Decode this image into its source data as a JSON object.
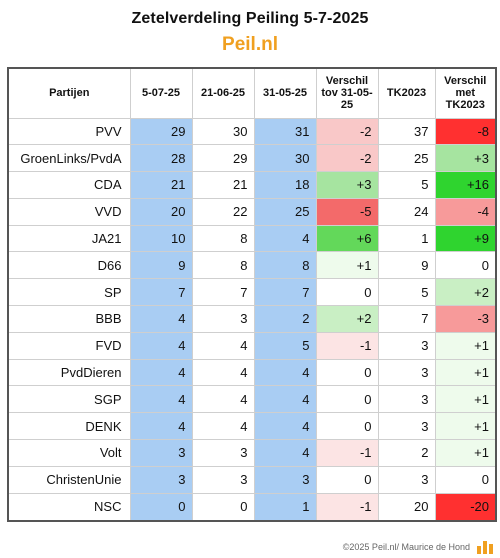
{
  "title": "Zetelverdeling Peiling 5-7-2025",
  "brand": "Peil.nl",
  "footer": "©2025 Peil.nl/ Maurice de Hond",
  "colors": {
    "date_col": "#a9cdf3",
    "neutral": "#ffffff",
    "neg_strong": "#f36a6a",
    "neg_light": "#f9c8c8",
    "pos_strong": "#33cc33",
    "pos_light": "#a6e4a0"
  },
  "chart_data": {
    "type": "table",
    "columns": [
      "Partijen",
      "5-07-25",
      "21-06-25",
      "31-05-25",
      "Verschil tov 31-05-25",
      "TK2023",
      "Verschil met TK2023"
    ],
    "rows": [
      {
        "party": "PVV",
        "v1": 29,
        "v2": 30,
        "v3": 31,
        "diff1": "-2",
        "tk": 37,
        "diff2": "-8"
      },
      {
        "party": "GroenLinks/PvdA",
        "v1": 28,
        "v2": 29,
        "v3": 30,
        "diff1": "-2",
        "tk": 25,
        "diff2": "+3"
      },
      {
        "party": "CDA",
        "v1": 21,
        "v2": 21,
        "v3": 18,
        "diff1": "+3",
        "tk": 5,
        "diff2": "+16"
      },
      {
        "party": "VVD",
        "v1": 20,
        "v2": 22,
        "v3": 25,
        "diff1": "-5",
        "tk": 24,
        "diff2": "-4"
      },
      {
        "party": "JA21",
        "v1": 10,
        "v2": 8,
        "v3": 4,
        "diff1": "+6",
        "tk": 1,
        "diff2": "+9"
      },
      {
        "party": "D66",
        "v1": 9,
        "v2": 8,
        "v3": 8,
        "diff1": "+1",
        "tk": 9,
        "diff2": "0"
      },
      {
        "party": "SP",
        "v1": 7,
        "v2": 7,
        "v3": 7,
        "diff1": "0",
        "tk": 5,
        "diff2": "+2"
      },
      {
        "party": "BBB",
        "v1": 4,
        "v2": 3,
        "v3": 2,
        "diff1": "+2",
        "tk": 7,
        "diff2": "-3"
      },
      {
        "party": "FVD",
        "v1": 4,
        "v2": 4,
        "v3": 5,
        "diff1": "-1",
        "tk": 3,
        "diff2": "+1"
      },
      {
        "party": "PvdDieren",
        "v1": 4,
        "v2": 4,
        "v3": 4,
        "diff1": "0",
        "tk": 3,
        "diff2": "+1"
      },
      {
        "party": "SGP",
        "v1": 4,
        "v2": 4,
        "v3": 4,
        "diff1": "0",
        "tk": 3,
        "diff2": "+1"
      },
      {
        "party": "DENK",
        "v1": 4,
        "v2": 4,
        "v3": 4,
        "diff1": "0",
        "tk": 3,
        "diff2": "+1"
      },
      {
        "party": "Volt",
        "v1": 3,
        "v2": 3,
        "v3": 4,
        "diff1": "-1",
        "tk": 2,
        "diff2": "+1"
      },
      {
        "party": "ChristenUnie",
        "v1": 3,
        "v2": 3,
        "v3": 3,
        "diff1": "0",
        "tk": 3,
        "diff2": "0"
      },
      {
        "party": "NSC",
        "v1": 0,
        "v2": 0,
        "v3": 1,
        "diff1": "-1",
        "tk": 20,
        "diff2": "-20"
      }
    ]
  }
}
